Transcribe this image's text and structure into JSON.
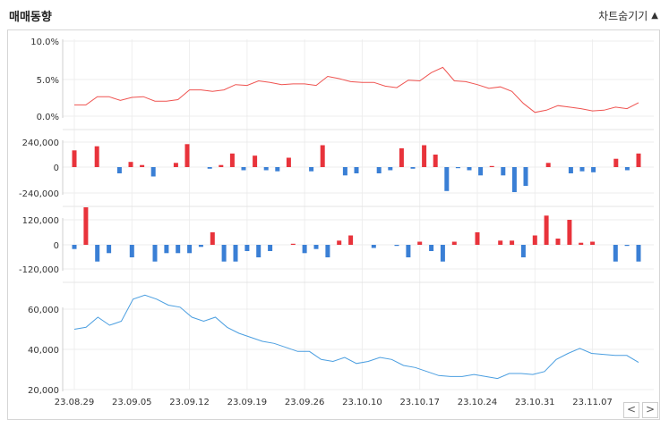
{
  "header": {
    "title": "매매동향",
    "toggle_label": "차트숨기기",
    "toggle_icon": "triangle-up-icon"
  },
  "nav": {
    "prev_label": "<",
    "next_label": ">"
  },
  "colors": {
    "price": "#ef5350",
    "positive": "#e8333b",
    "negative": "#3a7fd5",
    "line2": "#4a9ee0"
  },
  "chart_data": [
    {
      "type": "line",
      "series": [
        {
          "values": [
            1.5,
            1.5,
            2.6,
            2.6,
            2.1,
            2.5,
            2.6,
            2.0,
            2.0,
            2.2,
            3.5,
            3.5,
            3.3,
            3.5,
            4.2,
            4.1,
            4.7,
            4.5,
            4.2,
            4.3,
            4.3,
            4.1,
            5.3,
            5.0,
            4.6,
            4.5,
            4.5,
            4.0,
            3.8,
            4.8,
            4.7,
            5.8,
            6.5,
            4.7,
            4.6,
            4.2,
            3.7,
            3.9,
            3.3,
            1.7,
            0.5,
            0.8,
            1.4,
            1.2,
            1.0,
            0.7,
            0.8,
            1.2,
            1.0,
            1.8
          ]
        }
      ],
      "yticks": [
        "10.0%",
        "5.0%",
        "0.0%"
      ],
      "ylim": [
        0,
        10
      ]
    },
    {
      "type": "bar",
      "series": [
        {
          "values": [
            160000,
            0,
            200000,
            0,
            -60000,
            50000,
            20000,
            -90000,
            0,
            40000,
            220000,
            0,
            -15000,
            20000,
            130000,
            -30000,
            110000,
            -30000,
            -40000,
            90000,
            0,
            -40000,
            210000,
            0,
            -80000,
            -60000,
            0,
            -60000,
            -30000,
            180000,
            -15000,
            210000,
            120000,
            -230000,
            -10000,
            -30000,
            -80000,
            10000,
            -80000,
            -240000,
            -180000,
            0,
            40000,
            0,
            -60000,
            -40000,
            -50000,
            0,
            80000,
            -30000,
            130000
          ]
        }
      ],
      "yticks": [
        "240,000",
        "0",
        "-240,000"
      ],
      "ylim": [
        -240000,
        240000
      ]
    },
    {
      "type": "bar",
      "series": [
        {
          "values": [
            -20000,
            180000,
            -80000,
            -40000,
            0,
            -60000,
            0,
            -80000,
            -40000,
            -40000,
            -40000,
            -10000,
            60000,
            -80000,
            -80000,
            -30000,
            -60000,
            -30000,
            0,
            5000,
            -40000,
            -20000,
            -60000,
            20000,
            45000,
            0,
            -15000,
            0,
            -5000,
            -60000,
            15000,
            -30000,
            -80000,
            15000,
            0,
            60000,
            0,
            20000,
            20000,
            -60000,
            45000,
            140000,
            30000,
            120000,
            10000,
            15000,
            0,
            -80000,
            -5000,
            -80000
          ]
        }
      ],
      "yticks": [
        "120,000",
        "0",
        "-120,000"
      ],
      "ylim": [
        -160000,
        200000
      ]
    },
    {
      "type": "line",
      "series": [
        {
          "values": [
            50000,
            51000,
            56000,
            52000,
            54000,
            65000,
            67000,
            65000,
            62000,
            61000,
            56000,
            54000,
            56000,
            51000,
            48000,
            46000,
            44000,
            43000,
            41000,
            39000,
            39000,
            35000,
            34000,
            36000,
            33000,
            34000,
            36000,
            35000,
            32000,
            31000,
            29000,
            27000,
            26500,
            26500,
            27500,
            26500,
            25500,
            28000,
            28000,
            27500,
            29000,
            35000,
            38000,
            40500,
            38000,
            37500,
            37000,
            37000,
            33500
          ]
        }
      ],
      "yticks": [
        "60,000",
        "40,000",
        "20,000"
      ],
      "ylim": [
        20000,
        70000
      ]
    }
  ],
  "x_labels": [
    "23.08.29",
    "23.09.05",
    "23.09.12",
    "23.09.19",
    "23.09.26",
    "23.10.10",
    "23.10.17",
    "23.10.24",
    "23.10.31",
    "23.11.07"
  ]
}
